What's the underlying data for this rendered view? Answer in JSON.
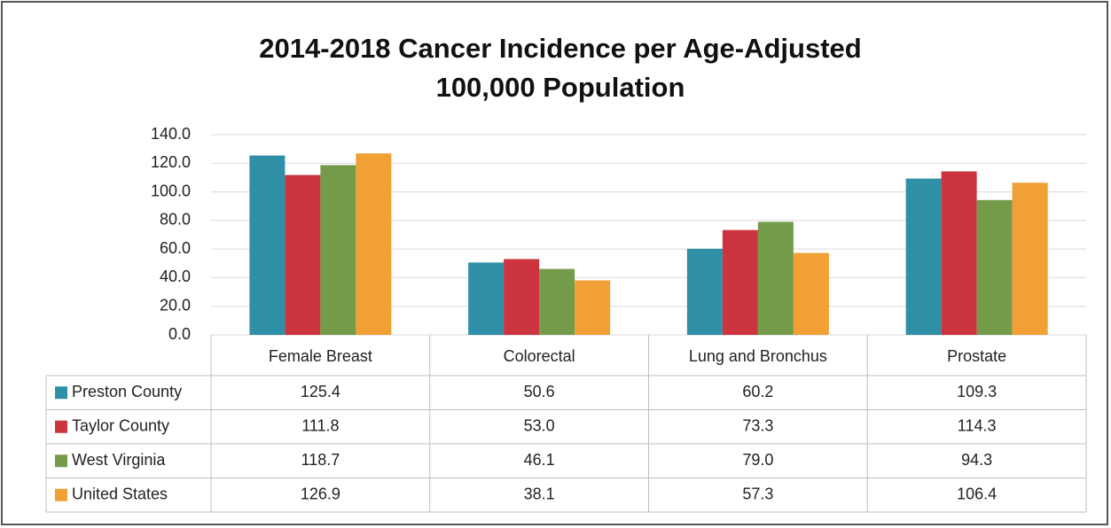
{
  "chart_data": {
    "type": "bar",
    "title": [
      "2014-2018 Cancer Incidence per Age-Adjusted",
      "100,000 Population"
    ],
    "categories": [
      "Female Breast",
      "Colorectal",
      "Lung and Bronchus",
      "Prostate"
    ],
    "series": [
      {
        "name": "Preston County",
        "color": "#2f8fa6",
        "values": [
          125.4,
          50.6,
          60.2,
          109.3
        ],
        "value_labels": [
          "125.4",
          "50.6",
          "60.2",
          "109.3"
        ]
      },
      {
        "name": "Taylor County",
        "color": "#cc343f",
        "values": [
          111.8,
          53,
          73.3,
          114.3
        ],
        "value_labels": [
          "111.8",
          "53.0",
          "73.3",
          "114.3"
        ]
      },
      {
        "name": "West Virginia",
        "color": "#739b4a",
        "values": [
          118.7,
          46.1,
          79,
          94.3
        ],
        "value_labels": [
          "118.7",
          "46.1",
          "79.0",
          "94.3"
        ]
      },
      {
        "name": "United States",
        "color": "#f0a035",
        "values": [
          126.9,
          38.1,
          57.3,
          106.4
        ],
        "value_labels": [
          "126.9",
          "38.1",
          "57.3",
          "106.4"
        ]
      }
    ],
    "ylim": [
      0,
      140
    ],
    "yticks": [
      {
        "value": 0,
        "label": "0.0"
      },
      {
        "value": 20,
        "label": "20.0"
      },
      {
        "value": 40,
        "label": "40.0"
      },
      {
        "value": 60,
        "label": "60.0"
      },
      {
        "value": 80,
        "label": "80.0"
      },
      {
        "value": 100,
        "label": "100.0"
      },
      {
        "value": 120,
        "label": "120.0"
      },
      {
        "value": 140,
        "label": "140.0"
      }
    ],
    "grid": true
  }
}
